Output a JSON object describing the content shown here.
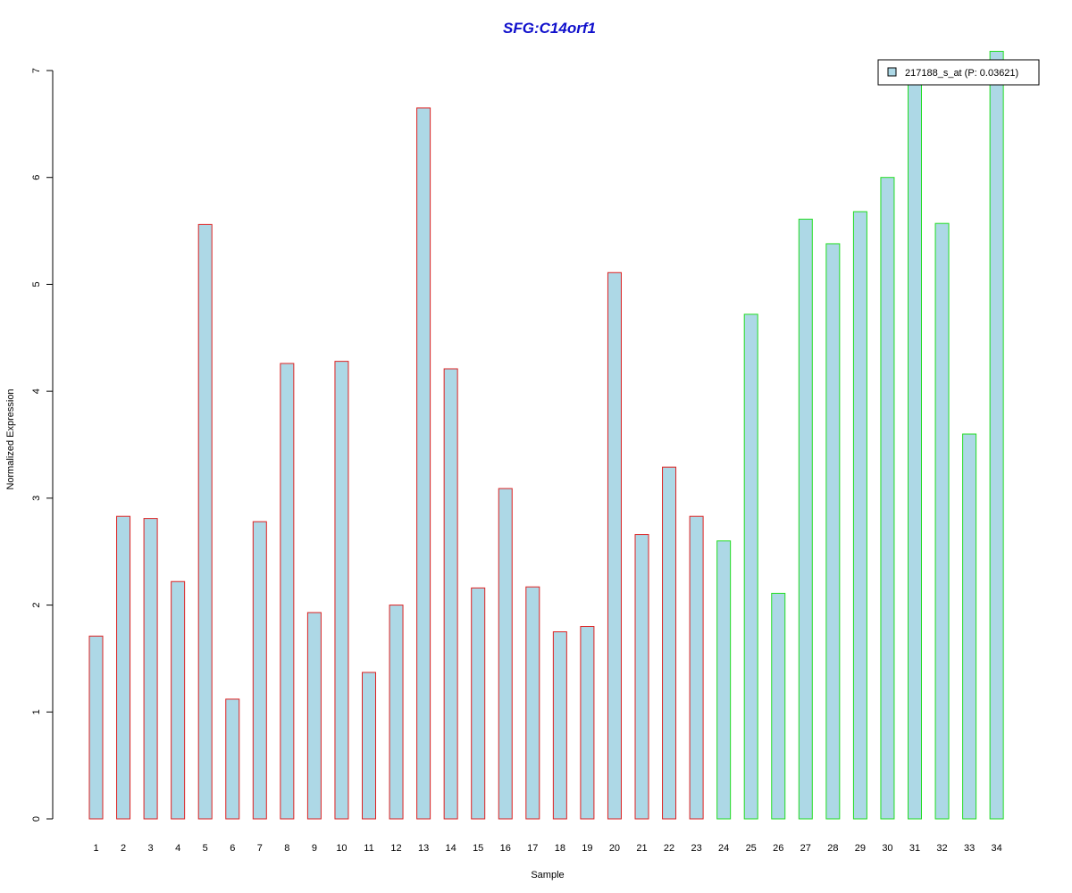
{
  "chart_data": {
    "type": "bar",
    "title": "SFG:C14orf1",
    "xlabel": "Sample",
    "ylabel": "Normalized Expression",
    "ylim": [
      0,
      7
    ],
    "yticks": [
      "0",
      "1",
      "2",
      "3",
      "4",
      "5",
      "6",
      "7"
    ],
    "categories": [
      "1",
      "2",
      "3",
      "4",
      "5",
      "6",
      "7",
      "8",
      "9",
      "10",
      "11",
      "12",
      "13",
      "14",
      "15",
      "16",
      "17",
      "18",
      "19",
      "20",
      "21",
      "22",
      "23",
      "24",
      "25",
      "26",
      "27",
      "28",
      "29",
      "30",
      "31",
      "32",
      "33",
      "34"
    ],
    "series": [
      {
        "name": "217188_s_at (P: 0.03621)",
        "values": [
          1.71,
          2.83,
          2.81,
          2.22,
          5.56,
          1.12,
          2.78,
          4.26,
          1.93,
          4.28,
          1.37,
          2.0,
          6.65,
          4.21,
          2.16,
          3.09,
          2.17,
          1.75,
          1.8,
          5.11,
          2.66,
          3.29,
          2.83,
          2.6,
          4.72,
          2.11,
          5.61,
          5.38,
          5.68,
          6.0,
          6.9,
          5.57,
          3.6,
          7.18
        ]
      }
    ],
    "groups": [
      "red",
      "red",
      "red",
      "red",
      "red",
      "red",
      "red",
      "red",
      "red",
      "red",
      "red",
      "red",
      "red",
      "red",
      "red",
      "red",
      "red",
      "red",
      "red",
      "red",
      "red",
      "red",
      "red",
      "green",
      "green",
      "green",
      "green",
      "green",
      "green",
      "green",
      "green",
      "green",
      "green",
      "green"
    ],
    "colors": {
      "fill": "#add8e6",
      "red": "#dd2222",
      "green": "#22dd22",
      "title": "#1010cc"
    },
    "legend_position": "top-right",
    "grid": false
  }
}
